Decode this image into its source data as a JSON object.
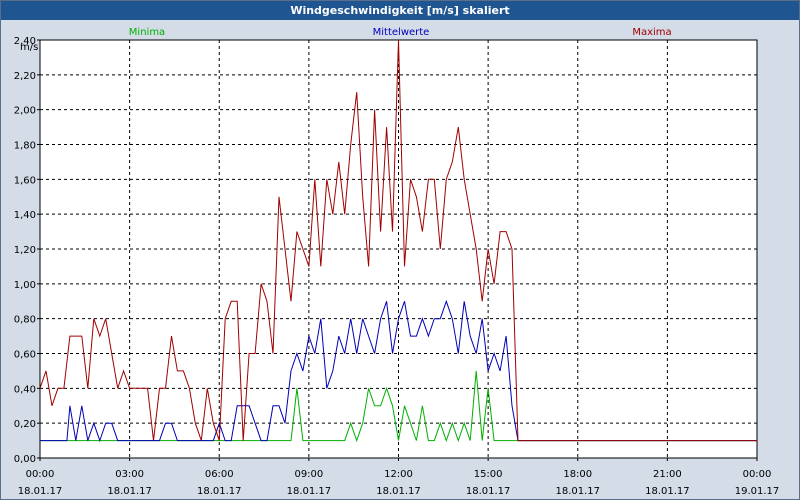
{
  "title": "Windgeschwindigkeit [m/s] skaliert",
  "colors": {
    "min": "#00b000",
    "mean": "#0000b8",
    "max": "#a00000"
  },
  "chart_data": {
    "type": "line",
    "title": "Windgeschwindigkeit [m/s] skaliert",
    "ylabel": "m/s",
    "ylim": [
      0,
      2.4
    ],
    "xlim": [
      0,
      24
    ],
    "y_ticks": [
      "0,00",
      "0,20",
      "0,40",
      "0,60",
      "0,80",
      "1,00",
      "1,20",
      "1,40",
      "1,60",
      "1,80",
      "2,00",
      "2,20",
      "2,40"
    ],
    "x_ticks": [
      {
        "time": "00:00",
        "date": "18.01.17"
      },
      {
        "time": "03:00",
        "date": "18.01.17"
      },
      {
        "time": "06:00",
        "date": "18.01.17"
      },
      {
        "time": "09:00",
        "date": "18.01.17"
      },
      {
        "time": "12:00",
        "date": "18.01.17"
      },
      {
        "time": "15:00",
        "date": "18.01.17"
      },
      {
        "time": "18:00",
        "date": "18.01.17"
      },
      {
        "time": "21:00",
        "date": "18.01.17"
      },
      {
        "time": "00:00",
        "date": "19.01.17"
      }
    ],
    "series": [
      {
        "name": "Minima",
        "points": [
          [
            0,
            0.1
          ],
          [
            7.3,
            0.1
          ],
          [
            8.4,
            0.1
          ],
          [
            8.6,
            0.4
          ],
          [
            8.8,
            0.1
          ],
          [
            10.2,
            0.1
          ],
          [
            10.4,
            0.2
          ],
          [
            10.6,
            0.1
          ],
          [
            10.8,
            0.2
          ],
          [
            11.0,
            0.4
          ],
          [
            11.2,
            0.3
          ],
          [
            11.4,
            0.3
          ],
          [
            11.6,
            0.4
          ],
          [
            11.8,
            0.3
          ],
          [
            12.0,
            0.1
          ],
          [
            12.2,
            0.3
          ],
          [
            12.4,
            0.2
          ],
          [
            12.6,
            0.1
          ],
          [
            12.8,
            0.3
          ],
          [
            13.0,
            0.1
          ],
          [
            13.2,
            0.1
          ],
          [
            13.4,
            0.2
          ],
          [
            13.6,
            0.1
          ],
          [
            13.8,
            0.2
          ],
          [
            14.0,
            0.1
          ],
          [
            14.2,
            0.2
          ],
          [
            14.4,
            0.1
          ],
          [
            14.6,
            0.5
          ],
          [
            14.8,
            0.1
          ],
          [
            15.0,
            0.4
          ],
          [
            15.2,
            0.1
          ],
          [
            24,
            0.1
          ]
        ]
      },
      {
        "name": "Mittelwerte",
        "points": [
          [
            0,
            0.1
          ],
          [
            0.9,
            0.1
          ],
          [
            1.0,
            0.3
          ],
          [
            1.2,
            0.1
          ],
          [
            1.4,
            0.3
          ],
          [
            1.6,
            0.1
          ],
          [
            1.8,
            0.2
          ],
          [
            2.0,
            0.1
          ],
          [
            2.2,
            0.2
          ],
          [
            2.4,
            0.2
          ],
          [
            2.6,
            0.1
          ],
          [
            4.0,
            0.1
          ],
          [
            4.2,
            0.2
          ],
          [
            4.4,
            0.2
          ],
          [
            4.6,
            0.1
          ],
          [
            5.8,
            0.1
          ],
          [
            6.0,
            0.2
          ],
          [
            6.2,
            0.1
          ],
          [
            6.4,
            0.1
          ],
          [
            6.6,
            0.3
          ],
          [
            6.8,
            0.3
          ],
          [
            7.0,
            0.3
          ],
          [
            7.2,
            0.2
          ],
          [
            7.4,
            0.1
          ],
          [
            7.6,
            0.1
          ],
          [
            7.8,
            0.3
          ],
          [
            8.0,
            0.3
          ],
          [
            8.2,
            0.2
          ],
          [
            8.4,
            0.5
          ],
          [
            8.6,
            0.6
          ],
          [
            8.8,
            0.5
          ],
          [
            9.0,
            0.7
          ],
          [
            9.2,
            0.6
          ],
          [
            9.4,
            0.8
          ],
          [
            9.6,
            0.4
          ],
          [
            9.8,
            0.5
          ],
          [
            10.0,
            0.7
          ],
          [
            10.2,
            0.6
          ],
          [
            10.4,
            0.8
          ],
          [
            10.6,
            0.6
          ],
          [
            10.8,
            0.8
          ],
          [
            11.0,
            0.7
          ],
          [
            11.2,
            0.6
          ],
          [
            11.4,
            0.8
          ],
          [
            11.6,
            0.9
          ],
          [
            11.8,
            0.6
          ],
          [
            12.0,
            0.8
          ],
          [
            12.2,
            0.9
          ],
          [
            12.4,
            0.7
          ],
          [
            12.6,
            0.7
          ],
          [
            12.8,
            0.8
          ],
          [
            13.0,
            0.7
          ],
          [
            13.2,
            0.8
          ],
          [
            13.4,
            0.8
          ],
          [
            13.6,
            0.9
          ],
          [
            13.8,
            0.8
          ],
          [
            14.0,
            0.6
          ],
          [
            14.2,
            0.9
          ],
          [
            14.4,
            0.7
          ],
          [
            14.6,
            0.6
          ],
          [
            14.8,
            0.8
          ],
          [
            15.0,
            0.5
          ],
          [
            15.2,
            0.6
          ],
          [
            15.4,
            0.5
          ],
          [
            15.6,
            0.7
          ],
          [
            15.8,
            0.3
          ],
          [
            16.0,
            0.1
          ],
          [
            24,
            0.1
          ]
        ]
      },
      {
        "name": "Maxima",
        "points": [
          [
            0,
            0.4
          ],
          [
            0.2,
            0.5
          ],
          [
            0.4,
            0.3
          ],
          [
            0.6,
            0.4
          ],
          [
            0.8,
            0.4
          ],
          [
            1.0,
            0.7
          ],
          [
            1.2,
            0.7
          ],
          [
            1.4,
            0.7
          ],
          [
            1.6,
            0.4
          ],
          [
            1.8,
            0.8
          ],
          [
            2.0,
            0.7
          ],
          [
            2.2,
            0.8
          ],
          [
            2.4,
            0.6
          ],
          [
            2.6,
            0.4
          ],
          [
            2.8,
            0.5
          ],
          [
            3.0,
            0.4
          ],
          [
            3.2,
            0.4
          ],
          [
            3.4,
            0.4
          ],
          [
            3.6,
            0.4
          ],
          [
            3.8,
            0.1
          ],
          [
            4.0,
            0.4
          ],
          [
            4.2,
            0.4
          ],
          [
            4.4,
            0.7
          ],
          [
            4.6,
            0.5
          ],
          [
            4.8,
            0.5
          ],
          [
            5.0,
            0.4
          ],
          [
            5.2,
            0.2
          ],
          [
            5.4,
            0.1
          ],
          [
            5.6,
            0.4
          ],
          [
            5.8,
            0.2
          ],
          [
            6.0,
            0.1
          ],
          [
            6.2,
            0.8
          ],
          [
            6.4,
            0.9
          ],
          [
            6.6,
            0.9
          ],
          [
            6.8,
            0.1
          ],
          [
            7.0,
            0.6
          ],
          [
            7.2,
            0.6
          ],
          [
            7.4,
            1.0
          ],
          [
            7.6,
            0.9
          ],
          [
            7.8,
            0.6
          ],
          [
            8.0,
            1.5
          ],
          [
            8.2,
            1.2
          ],
          [
            8.4,
            0.9
          ],
          [
            8.6,
            1.3
          ],
          [
            8.8,
            1.2
          ],
          [
            9.0,
            1.1
          ],
          [
            9.2,
            1.6
          ],
          [
            9.4,
            1.1
          ],
          [
            9.6,
            1.6
          ],
          [
            9.8,
            1.4
          ],
          [
            10.0,
            1.7
          ],
          [
            10.2,
            1.4
          ],
          [
            10.4,
            1.8
          ],
          [
            10.6,
            2.1
          ],
          [
            10.8,
            1.5
          ],
          [
            11.0,
            1.1
          ],
          [
            11.2,
            2.0
          ],
          [
            11.4,
            1.3
          ],
          [
            11.6,
            1.9
          ],
          [
            11.8,
            1.3
          ],
          [
            12.0,
            2.4
          ],
          [
            12.2,
            1.1
          ],
          [
            12.4,
            1.6
          ],
          [
            12.6,
            1.5
          ],
          [
            12.8,
            1.3
          ],
          [
            13.0,
            1.6
          ],
          [
            13.2,
            1.6
          ],
          [
            13.4,
            1.2
          ],
          [
            13.6,
            1.6
          ],
          [
            13.8,
            1.7
          ],
          [
            14.0,
            1.9
          ],
          [
            14.2,
            1.6
          ],
          [
            14.4,
            1.4
          ],
          [
            14.6,
            1.2
          ],
          [
            14.8,
            0.9
          ],
          [
            15.0,
            1.2
          ],
          [
            15.2,
            1.0
          ],
          [
            15.4,
            1.3
          ],
          [
            15.6,
            1.3
          ],
          [
            15.8,
            1.2
          ],
          [
            16.0,
            0.1
          ],
          [
            24,
            0.1
          ]
        ]
      }
    ]
  }
}
